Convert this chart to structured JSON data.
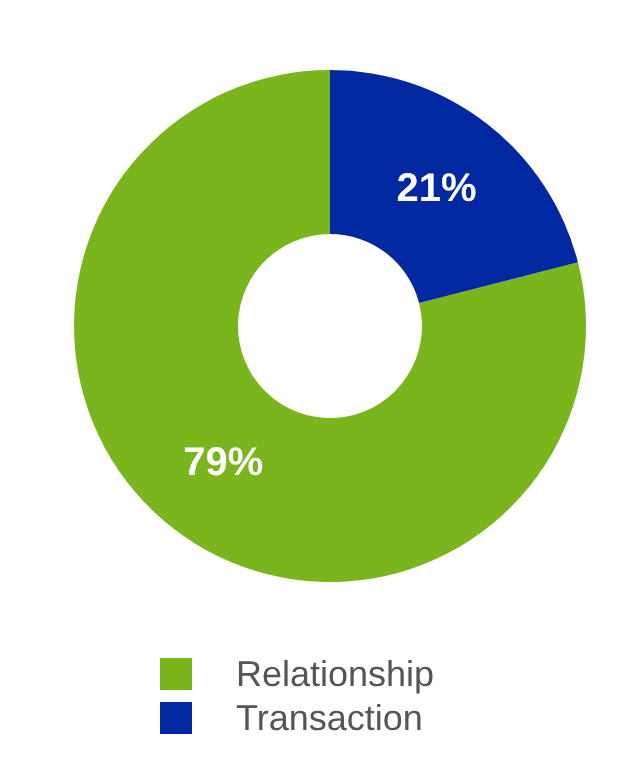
{
  "chart_data": {
    "type": "donut",
    "categories": [
      "Relationship",
      "Transaction"
    ],
    "values": [
      79,
      21
    ],
    "colors": [
      "#7ab51d",
      "#0028a0"
    ],
    "value_labels": [
      "79%",
      "21%"
    ],
    "legend": "bottom"
  }
}
